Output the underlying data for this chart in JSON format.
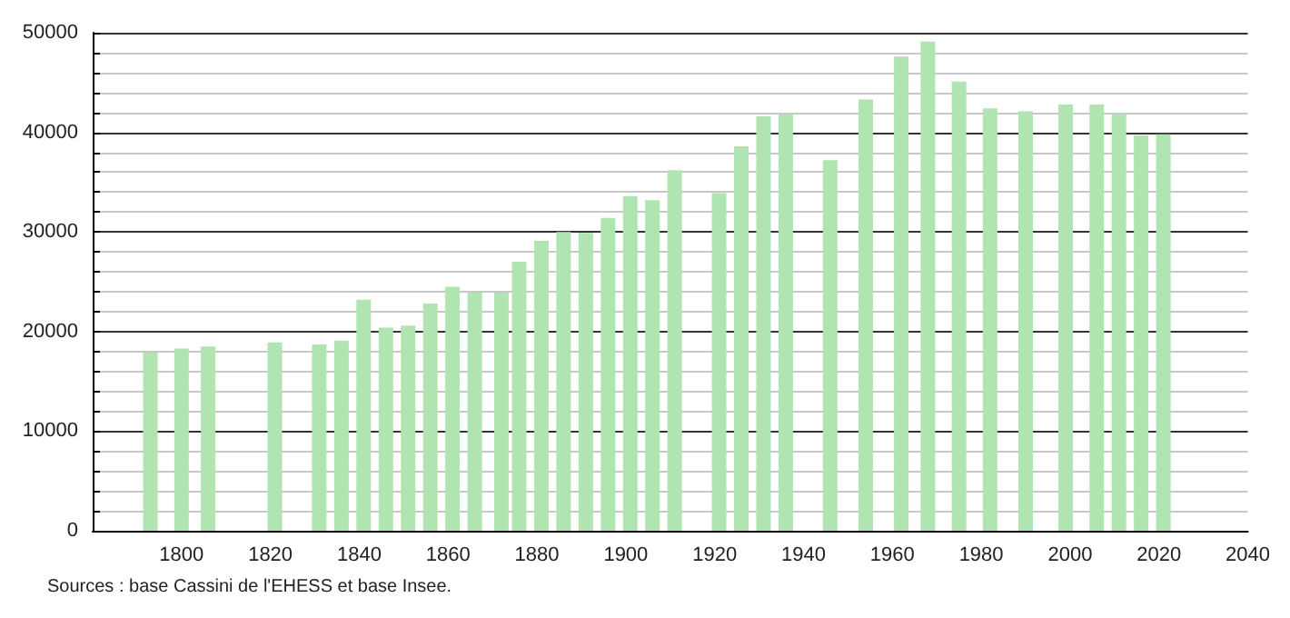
{
  "chart_data": {
    "type": "bar",
    "color": "#b0e4b0",
    "x": [
      1793,
      1800,
      1806,
      1821,
      1831,
      1836,
      1841,
      1846,
      1851,
      1856,
      1861,
      1866,
      1872,
      1876,
      1881,
      1886,
      1891,
      1896,
      1901,
      1906,
      1911,
      1921,
      1926,
      1931,
      1936,
      1946,
      1954,
      1962,
      1968,
      1975,
      1982,
      1990,
      1999,
      2006,
      2011,
      2016,
      2021
    ],
    "values": [
      17900,
      18300,
      18500,
      18900,
      18700,
      19100,
      23200,
      20400,
      20600,
      22800,
      24500,
      23900,
      23900,
      27000,
      29100,
      30000,
      29900,
      31400,
      33600,
      33200,
      36200,
      33900,
      38600,
      41600,
      41800,
      37200,
      43300,
      47600,
      49100,
      45100,
      42400,
      42100,
      42800,
      42800,
      41800,
      39700,
      39800
    ],
    "xlim": [
      1780,
      2040
    ],
    "xticks": [
      1800,
      1820,
      1840,
      1860,
      1880,
      1900,
      1920,
      1940,
      1960,
      1980,
      2000,
      2020,
      2040
    ],
    "ylim": [
      0,
      50000
    ],
    "yticks": [
      0,
      {
        "value": 2000,
        "label": null
      },
      {
        "value": 4000,
        "label": null
      },
      {
        "value": 6000,
        "label": null
      },
      {
        "value": 8000,
        "label": null
      },
      10000,
      {
        "value": 12000,
        "label": null
      },
      {
        "value": 14000,
        "label": null
      },
      {
        "value": 16000,
        "label": null
      },
      {
        "value": 18000,
        "label": null
      },
      20000,
      {
        "value": 22000,
        "label": null
      },
      {
        "value": 24000,
        "label": null
      },
      {
        "value": 26000,
        "label": null
      },
      {
        "value": 28000,
        "label": null
      },
      30000,
      {
        "value": 32000,
        "label": null
      },
      {
        "value": 34000,
        "label": null
      },
      {
        "value": 36000,
        "label": null
      },
      {
        "value": 38000,
        "label": null
      },
      40000,
      {
        "value": 42000,
        "label": null
      },
      {
        "value": 44000,
        "label": null
      },
      {
        "value": 46000,
        "label": null
      },
      {
        "value": 48000,
        "label": null
      },
      50000
    ],
    "grid": "y",
    "annotations": [
      "Sources : base Cassini de l'EHESS et base Insee."
    ]
  }
}
